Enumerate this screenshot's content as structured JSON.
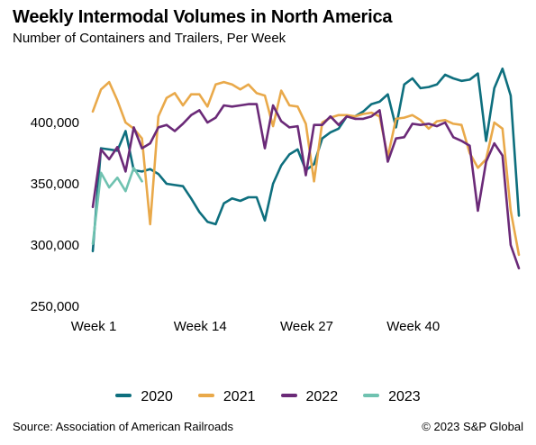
{
  "title": "Weekly Intermodal Volumes in North America",
  "subtitle": "Number of Containers and Trailers, Per Week",
  "footer": {
    "source": "Source: Association of American Railroads",
    "copyright": "© 2023 S&P Global"
  },
  "chart_data": {
    "type": "line",
    "title": "Weekly Intermodal Volumes in North America",
    "subtitle": "Number of Containers and Trailers, Per Week",
    "xlabel": "",
    "ylabel": "",
    "x_range": [
      1,
      53
    ],
    "x_ticks": [
      {
        "x": 1,
        "label": "Week 1"
      },
      {
        "x": 14,
        "label": "Week 14"
      },
      {
        "x": 27,
        "label": "Week 27"
      },
      {
        "x": 40,
        "label": "Week 40"
      }
    ],
    "ylim": [
      250000,
      450000
    ],
    "y_ticks": [
      {
        "y": 250000,
        "label": "250,000"
      },
      {
        "y": 300000,
        "label": "300,000"
      },
      {
        "y": 350000,
        "label": "350,000"
      },
      {
        "y": 400000,
        "label": "400,000"
      }
    ],
    "grid": false,
    "legend_position": "bottom",
    "series": [
      {
        "name": "2020",
        "color": "#0e6f7e",
        "values": [
          295000,
          379000,
          378000,
          377000,
          393000,
          361000,
          360000,
          362000,
          358000,
          350000,
          349000,
          348000,
          338000,
          327000,
          319000,
          317000,
          334000,
          338000,
          336000,
          339000,
          339000,
          320000,
          350000,
          365000,
          374000,
          378000,
          361000,
          366000,
          387000,
          392000,
          395000,
          405000,
          405000,
          409000,
          415000,
          417000,
          423000,
          396000,
          431000,
          436000,
          428000,
          429000,
          431000,
          439000,
          436000,
          434000,
          435000,
          440000,
          385000,
          428000,
          444000,
          422000,
          324000
        ]
      },
      {
        "name": "2021",
        "color": "#e9a94a",
        "values": [
          409000,
          427000,
          433000,
          418000,
          400000,
          395000,
          387000,
          317000,
          405000,
          420000,
          424000,
          414000,
          423000,
          423000,
          413000,
          431000,
          433000,
          431000,
          427000,
          431000,
          424000,
          422000,
          397000,
          426000,
          414000,
          413000,
          399000,
          352000,
          400000,
          404000,
          406000,
          406000,
          405000,
          407000,
          408000,
          405000,
          372000,
          403000,
          404000,
          406000,
          402000,
          395000,
          401000,
          402000,
          399000,
          398000,
          375000,
          363000,
          370000,
          400000,
          395000,
          328000,
          292000
        ]
      },
      {
        "name": "2022",
        "color": "#6b2a78",
        "values": [
          331000,
          378000,
          370000,
          380000,
          360000,
          396000,
          379000,
          383000,
          396000,
          398000,
          393000,
          399000,
          406000,
          410000,
          400000,
          404000,
          414000,
          413000,
          414000,
          415000,
          415000,
          379000,
          414000,
          401000,
          396000,
          397000,
          357000,
          398000,
          398000,
          405000,
          398000,
          405000,
          403000,
          403000,
          405000,
          410000,
          368000,
          387000,
          388000,
          399000,
          398000,
          399000,
          397000,
          400000,
          388000,
          385000,
          381000,
          328000,
          368000,
          383000,
          373000,
          300000,
          281000
        ]
      },
      {
        "name": "2023",
        "color": "#6fc2b0",
        "values": [
          301000,
          359000,
          347000,
          355000,
          344000,
          363000,
          352000
        ]
      }
    ]
  }
}
